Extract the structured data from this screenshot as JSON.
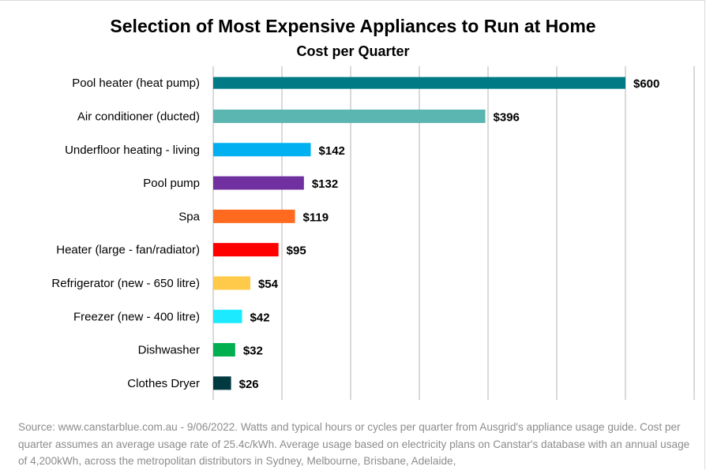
{
  "chart_data": {
    "type": "bar",
    "orientation": "horizontal",
    "title": "Selection of Most Expensive Appliances to Run at Home",
    "subtitle": "Cost per Quarter",
    "categories": [
      "Pool heater (heat pump)",
      "Air conditioner (ducted)",
      "Underfloor heating - living",
      "Pool pump",
      "Spa",
      "Heater (large - fan/radiator)",
      "Refrigerator (new - 650 litre)",
      "Freezer (new - 400 litre)",
      "Dishwasher",
      "Clothes Dryer"
    ],
    "values": [
      600,
      396,
      142,
      132,
      119,
      95,
      54,
      42,
      32,
      26
    ],
    "data_labels": [
      "$600",
      "$396",
      "$142",
      "$132",
      "$119",
      "$95",
      "$54",
      "$42",
      "$32",
      "$26"
    ],
    "colors": [
      "#007A84",
      "#5BB5B0",
      "#00B0F0",
      "#7030A0",
      "#FF6A1F",
      "#FF0000",
      "#FFC94A",
      "#1CEBFF",
      "#00B050",
      "#003A40"
    ],
    "xlim": [
      0,
      700
    ],
    "x_gridline_step": 100,
    "grid": true,
    "x_tick_labels_shown": false,
    "legend": "none"
  },
  "footer": {
    "source": "Source: www.canstarblue.com.au - 9/06/2022. Watts and typical hours or cycles per quarter from Ausgrid's appliance usage guide. Cost per quarter assumes an average usage rate of 25.4c/kWh. Average usage based on electricity plans on Canstar's database with an annual usage of 4,200kWh, across the metropolitan distributors in Sydney, Melbourne, Brisbane, Adelaide,"
  }
}
